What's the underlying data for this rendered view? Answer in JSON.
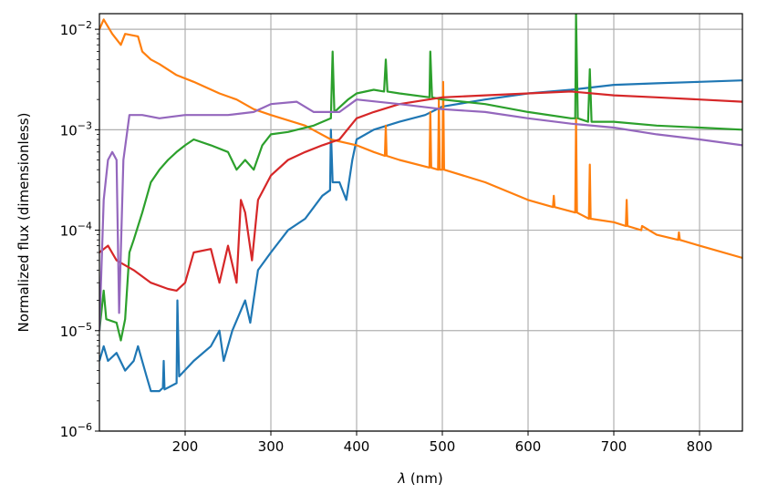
{
  "chart_data": {
    "type": "line",
    "title": "",
    "xlabel": "λ (nm)",
    "xlabel_symbol": "λ",
    "xlabel_unit": " (nm)",
    "ylabel": "Normalized flux (dimensionless)",
    "xlim": [
      100,
      850
    ],
    "ylim": [
      1e-06,
      0.0143
    ],
    "yscale": "log",
    "grid": true,
    "xticks": [
      200,
      300,
      400,
      500,
      600,
      700,
      800
    ],
    "xtick_labels": [
      "200",
      "300",
      "400",
      "500",
      "600",
      "700",
      "800"
    ],
    "yticks": [
      1e-06,
      1e-05,
      0.0001,
      0.001,
      0.01
    ],
    "ytick_labels": [
      {
        "base": "10",
        "exp": "−6"
      },
      {
        "base": "10",
        "exp": "−5"
      },
      {
        "base": "10",
        "exp": "−4"
      },
      {
        "base": "10",
        "exp": "−3"
      },
      {
        "base": "10",
        "exp": "−2"
      }
    ],
    "series": [
      {
        "name": "blue",
        "color": "#1f77b4",
        "points": [
          [
            100,
            5e-06
          ],
          [
            105,
            7e-06
          ],
          [
            110,
            5e-06
          ],
          [
            120,
            6e-06
          ],
          [
            130,
            4e-06
          ],
          [
            140,
            5e-06
          ],
          [
            145,
            7e-06
          ],
          [
            155,
            3.5e-06
          ],
          [
            160,
            2.5e-06
          ],
          [
            170,
            2.5e-06
          ],
          [
            174,
            2.7e-06
          ],
          [
            175,
            5e-06
          ],
          [
            176,
            2.6e-06
          ],
          [
            190,
            3e-06
          ],
          [
            191,
            2e-05
          ],
          [
            193,
            3.5e-06
          ],
          [
            210,
            5e-06
          ],
          [
            230,
            7e-06
          ],
          [
            240,
            1e-05
          ],
          [
            245,
            5e-06
          ],
          [
            255,
            1e-05
          ],
          [
            270,
            2e-05
          ],
          [
            276,
            1.2e-05
          ],
          [
            285,
            4e-05
          ],
          [
            300,
            6e-05
          ],
          [
            320,
            0.0001
          ],
          [
            340,
            0.00013
          ],
          [
            360,
            0.00022
          ],
          [
            369,
            0.00025
          ],
          [
            370,
            0.001
          ],
          [
            372,
            0.0003
          ],
          [
            380,
            0.0003
          ],
          [
            388,
            0.0002
          ],
          [
            395,
            0.0005
          ],
          [
            400,
            0.0008
          ],
          [
            420,
            0.001
          ],
          [
            450,
            0.0012
          ],
          [
            480,
            0.0014
          ],
          [
            500,
            0.0017
          ],
          [
            550,
            0.002
          ],
          [
            600,
            0.0023
          ],
          [
            650,
            0.0025
          ],
          [
            700,
            0.0028
          ],
          [
            750,
            0.0029
          ],
          [
            800,
            0.003
          ],
          [
            850,
            0.0031
          ]
        ]
      },
      {
        "name": "orange",
        "color": "#ff7f0e",
        "points": [
          [
            100,
            0.01
          ],
          [
            105,
            0.0125
          ],
          [
            115,
            0.009
          ],
          [
            125,
            0.007
          ],
          [
            130,
            0.009
          ],
          [
            145,
            0.0085
          ],
          [
            150,
            0.006
          ],
          [
            160,
            0.005
          ],
          [
            170,
            0.0045
          ],
          [
            190,
            0.0035
          ],
          [
            210,
            0.003
          ],
          [
            240,
            0.0023
          ],
          [
            260,
            0.002
          ],
          [
            280,
            0.0016
          ],
          [
            300,
            0.0014
          ],
          [
            340,
            0.0011
          ],
          [
            370,
            0.0008
          ],
          [
            400,
            0.0007
          ],
          [
            420,
            0.0006
          ],
          [
            433,
            0.00055
          ],
          [
            434,
            0.0011
          ],
          [
            435,
            0.00055
          ],
          [
            450,
            0.0005
          ],
          [
            485,
            0.00042
          ],
          [
            486,
            0.0015
          ],
          [
            487,
            0.00042
          ],
          [
            495,
            0.0004
          ],
          [
            496,
            0.002
          ],
          [
            497,
            0.0004
          ],
          [
            500,
            0.0004
          ],
          [
            501,
            0.003
          ],
          [
            502,
            0.0004
          ],
          [
            550,
            0.0003
          ],
          [
            600,
            0.0002
          ],
          [
            629,
            0.00017
          ],
          [
            630,
            0.00022
          ],
          [
            631,
            0.00017
          ],
          [
            655,
            0.00015
          ],
          [
            656,
            0.0013
          ],
          [
            657,
            0.00015
          ],
          [
            671,
            0.00013
          ],
          [
            672,
            0.00045
          ],
          [
            673,
            0.00013
          ],
          [
            700,
            0.00012
          ],
          [
            714,
            0.00011
          ],
          [
            715,
            0.0002
          ],
          [
            716,
            0.00011
          ],
          [
            732,
            0.0001
          ],
          [
            733,
            0.00011
          ],
          [
            750,
            9e-05
          ],
          [
            775,
            8e-05
          ],
          [
            776,
            9.5e-05
          ],
          [
            777,
            8e-05
          ],
          [
            800,
            7e-05
          ],
          [
            850,
            5.3e-05
          ]
        ]
      },
      {
        "name": "green",
        "color": "#2ca02c",
        "points": [
          [
            100,
            1e-05
          ],
          [
            105,
            2.5e-05
          ],
          [
            108,
            1.3e-05
          ],
          [
            120,
            1.2e-05
          ],
          [
            125,
            8e-06
          ],
          [
            130,
            1.3e-05
          ],
          [
            135,
            6e-05
          ],
          [
            140,
            8e-05
          ],
          [
            150,
            0.00015
          ],
          [
            160,
            0.0003
          ],
          [
            170,
            0.0004
          ],
          [
            180,
            0.0005
          ],
          [
            190,
            0.0006
          ],
          [
            200,
            0.0007
          ],
          [
            210,
            0.0008
          ],
          [
            230,
            0.0007
          ],
          [
            250,
            0.0006
          ],
          [
            260,
            0.0004
          ],
          [
            270,
            0.0005
          ],
          [
            280,
            0.0004
          ],
          [
            290,
            0.0007
          ],
          [
            300,
            0.0009
          ],
          [
            320,
            0.00095
          ],
          [
            350,
            0.0011
          ],
          [
            370,
            0.0013
          ],
          [
            372,
            0.006
          ],
          [
            374,
            0.0015
          ],
          [
            390,
            0.002
          ],
          [
            400,
            0.0023
          ],
          [
            420,
            0.0025
          ],
          [
            432,
            0.0024
          ],
          [
            434,
            0.005
          ],
          [
            436,
            0.0024
          ],
          [
            450,
            0.0023
          ],
          [
            485,
            0.0021
          ],
          [
            486,
            0.006
          ],
          [
            488,
            0.0021
          ],
          [
            500,
            0.002
          ],
          [
            550,
            0.0018
          ],
          [
            600,
            0.0015
          ],
          [
            650,
            0.0013
          ],
          [
            655,
            0.0013
          ],
          [
            656,
            0.014
          ],
          [
            658,
            0.0013
          ],
          [
            670,
            0.0012
          ],
          [
            672,
            0.004
          ],
          [
            674,
            0.0012
          ],
          [
            700,
            0.0012
          ],
          [
            750,
            0.0011
          ],
          [
            800,
            0.00105
          ],
          [
            850,
            0.001
          ]
        ]
      },
      {
        "name": "red",
        "color": "#d62728",
        "points": [
          [
            100,
            6e-05
          ],
          [
            110,
            7e-05
          ],
          [
            120,
            5e-05
          ],
          [
            140,
            4e-05
          ],
          [
            160,
            3e-05
          ],
          [
            180,
            2.6e-05
          ],
          [
            190,
            2.5e-05
          ],
          [
            200,
            3e-05
          ],
          [
            210,
            6e-05
          ],
          [
            230,
            6.5e-05
          ],
          [
            240,
            3e-05
          ],
          [
            250,
            7e-05
          ],
          [
            260,
            3e-05
          ],
          [
            265,
            0.0002
          ],
          [
            270,
            0.00015
          ],
          [
            278,
            5e-05
          ],
          [
            285,
            0.0002
          ],
          [
            300,
            0.00035
          ],
          [
            320,
            0.0005
          ],
          [
            340,
            0.0006
          ],
          [
            360,
            0.0007
          ],
          [
            380,
            0.0008
          ],
          [
            400,
            0.0013
          ],
          [
            420,
            0.0015
          ],
          [
            450,
            0.0018
          ],
          [
            500,
            0.0021
          ],
          [
            550,
            0.0022
          ],
          [
            600,
            0.0023
          ],
          [
            650,
            0.0024
          ],
          [
            700,
            0.0022
          ],
          [
            750,
            0.0021
          ],
          [
            800,
            0.002
          ],
          [
            850,
            0.0019
          ]
        ]
      },
      {
        "name": "purple",
        "color": "#9467bd",
        "points": [
          [
            100,
            1e-05
          ],
          [
            105,
            0.0002
          ],
          [
            110,
            0.0005
          ],
          [
            115,
            0.0006
          ],
          [
            120,
            0.0005
          ],
          [
            123,
            1.5e-05
          ],
          [
            128,
            0.0005
          ],
          [
            135,
            0.0014
          ],
          [
            150,
            0.0014
          ],
          [
            170,
            0.0013
          ],
          [
            200,
            0.0014
          ],
          [
            250,
            0.0014
          ],
          [
            280,
            0.0015
          ],
          [
            300,
            0.0018
          ],
          [
            330,
            0.0019
          ],
          [
            350,
            0.0015
          ],
          [
            380,
            0.0015
          ],
          [
            400,
            0.002
          ],
          [
            450,
            0.0018
          ],
          [
            500,
            0.0016
          ],
          [
            550,
            0.0015
          ],
          [
            600,
            0.0013
          ],
          [
            650,
            0.00115
          ],
          [
            700,
            0.00105
          ],
          [
            750,
            0.0009
          ],
          [
            800,
            0.0008
          ],
          [
            850,
            0.0007
          ]
        ]
      }
    ]
  }
}
